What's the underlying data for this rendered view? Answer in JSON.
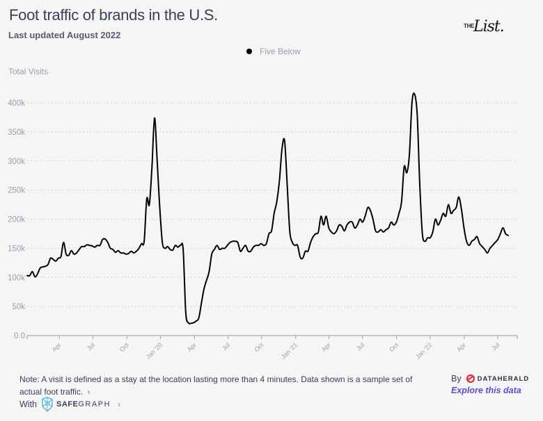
{
  "header": {
    "title": "Foot traffic of brands in the U.S.",
    "subtitle": "Last updated August 2022",
    "logo_prefix": "THE",
    "logo_text": "List."
  },
  "footer": {
    "note": "Note: A visit is defined as a stay at the location lasting more than 4 minutes. Data shown is a sample set of actual foot traffic.",
    "note_chevron": "›",
    "with_label": "With",
    "safegraph_bold": "SAFE",
    "safegraph_rest": "GRAPH",
    "safegraph_chevron": "›",
    "by_label": "By",
    "dataherald": "DATAHERALD",
    "explore_link": "Explore this data"
  },
  "colors": {
    "line": "#000000",
    "title": "#3b3d5c",
    "axis_text": "#9a9cb0",
    "link": "#5b4fcf",
    "dataherald_red": "#d9303e",
    "safegraph_blue": "#4fb3d9"
  },
  "chart_data": {
    "type": "line",
    "title": "Foot traffic of brands in the U.S.",
    "subtitle": "Last updated August 2022",
    "xlabel": "",
    "ylabel": "Total Visits",
    "legend": {
      "entries": [
        "Five Below"
      ],
      "placement": "top-center"
    },
    "grid": true,
    "ylim": [
      0,
      400000
    ],
    "yticks": [
      0,
      50000,
      100000,
      150000,
      200000,
      250000,
      300000,
      350000,
      400000
    ],
    "ytick_labels": [
      "0.0",
      "50k",
      "100k",
      "150k",
      "200k",
      "250k",
      "300k",
      "350k",
      "400k"
    ],
    "x_start": "2019-01-06",
    "x_step": "week",
    "xtick_labels": [
      "Apr",
      "Jul",
      "Oct",
      "Jan '20",
      "Apr",
      "Jul",
      "Oct",
      "Jan '21",
      "Apr",
      "Jul",
      "Oct",
      "Jan '22",
      "Apr",
      "Jul"
    ],
    "xtick_weeks": [
      12.4,
      25.3,
      38.4,
      51.3,
      64.4,
      77.3,
      90.2,
      103.3,
      116.1,
      129.0,
      142.1,
      155.0,
      168.1,
      181.0
    ],
    "x_end_week": 188.5,
    "series": [
      {
        "name": "Five Below",
        "color": "#000000",
        "values": [
          103000,
          103000,
          110000,
          101000,
          106000,
          116000,
          118000,
          119000,
          122000,
          133000,
          131000,
          128000,
          133000,
          136000,
          160000,
          140000,
          138000,
          146000,
          140000,
          142000,
          148000,
          153000,
          153000,
          156000,
          155000,
          154000,
          152000,
          155000,
          155000,
          165000,
          166000,
          160000,
          150000,
          148000,
          143000,
          146000,
          142000,
          142000,
          140000,
          141000,
          145000,
          142000,
          145000,
          150000,
          158000,
          162000,
          235000,
          225000,
          290000,
          374000,
          300000,
          220000,
          160000,
          150000,
          153000,
          148000,
          147000,
          155000,
          152000,
          155000,
          148000,
          40000,
          22000,
          21000,
          22000,
          25000,
          30000,
          55000,
          80000,
          95000,
          110000,
          140000,
          148000,
          155000,
          148000,
          150000,
          150000,
          155000,
          160000,
          162000,
          162000,
          160000,
          145000,
          150000,
          155000,
          145000,
          145000,
          152000,
          155000,
          155000,
          158000,
          155000,
          158000,
          175000,
          180000,
          210000,
          230000,
          265000,
          320000,
          335000,
          260000,
          180000,
          160000,
          155000,
          155000,
          135000,
          133000,
          145000,
          145000,
          160000,
          170000,
          175000,
          178000,
          205000,
          190000,
          205000,
          185000,
          178000,
          175000,
          180000,
          190000,
          188000,
          180000,
          190000,
          195000,
          195000,
          185000,
          190000,
          200000,
          195000,
          205000,
          220000,
          215000,
          200000,
          180000,
          178000,
          182000,
          178000,
          182000,
          185000,
          195000,
          190000,
          195000,
          210000,
          230000,
          290000,
          280000,
          310000,
          400000,
          415000,
          380000,
          260000,
          175000,
          162000,
          168000,
          168000,
          178000,
          200000,
          190000,
          198000,
          210000,
          205000,
          225000,
          210000,
          215000,
          220000,
          238000,
          218000,
          185000,
          162000,
          155000,
          162000,
          165000,
          170000,
          158000,
          153000,
          148000,
          142000,
          150000,
          155000,
          160000,
          165000,
          175000,
          185000,
          175000,
          172000
        ]
      }
    ]
  }
}
